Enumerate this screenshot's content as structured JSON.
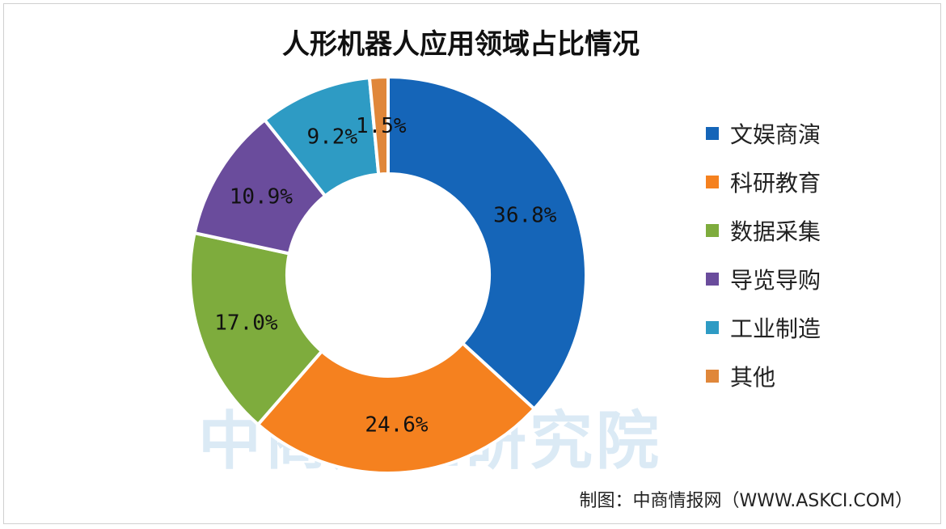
{
  "title": "人形机器人应用领域占比情况",
  "source": "制图：中商情报网（WWW.ASKCI.COM）",
  "watermark": "中商产业研究院",
  "chart_data": {
    "type": "pie",
    "donut": true,
    "title": "人形机器人应用领域占比情况",
    "legend_position": "right",
    "categories": [
      "文娱商演",
      "科研教育",
      "数据采集",
      "导览导购",
      "工业制造",
      "其他"
    ],
    "values": [
      36.8,
      24.6,
      17.0,
      10.9,
      9.2,
      1.5
    ],
    "labels": [
      "36.8%",
      "24.6%",
      "17.0%",
      "10.9%",
      "9.2%",
      "1.5%"
    ],
    "colors": [
      "#1565b8",
      "#f5811f",
      "#7eac3d",
      "#6a4c9c",
      "#2e9bc4",
      "#e0873a"
    ]
  }
}
